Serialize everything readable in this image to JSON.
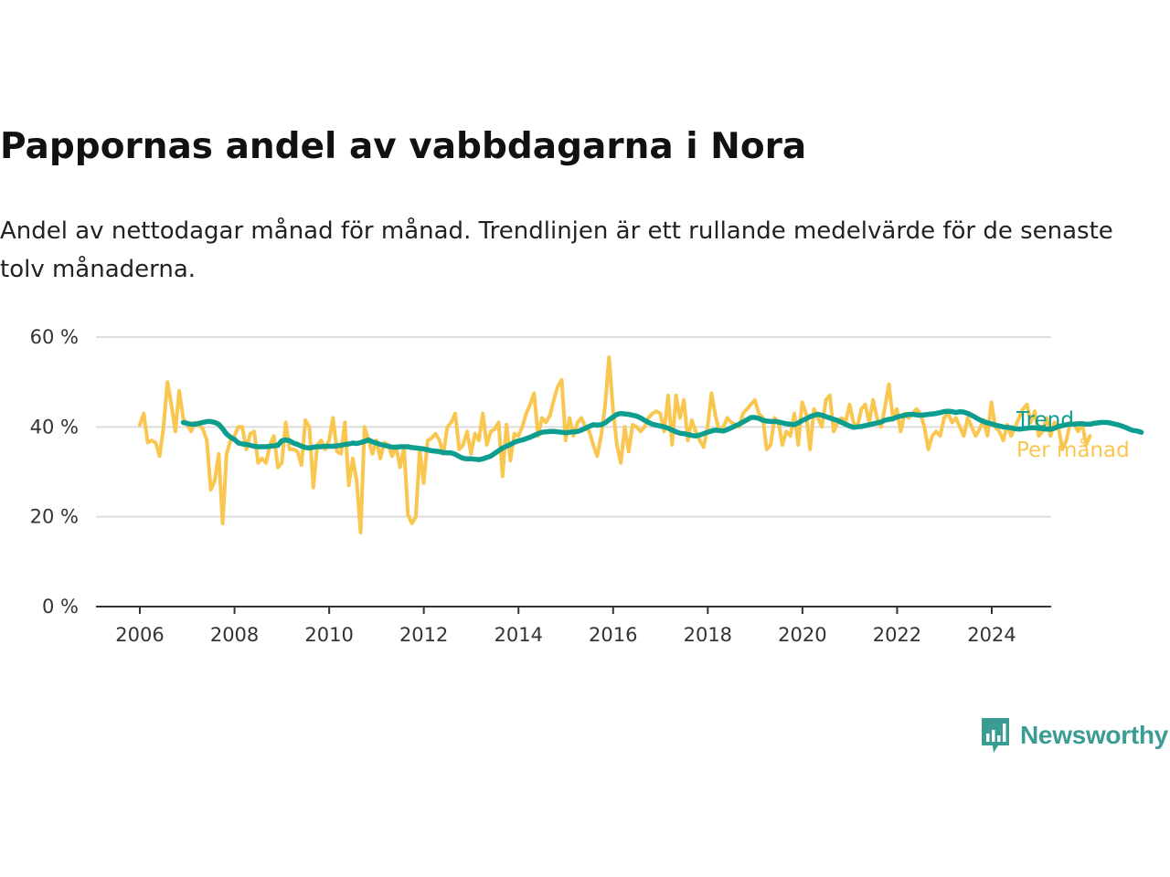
{
  "colors": {
    "trend": "#0d9e8f",
    "monthly": "#f9c74f",
    "grid": "#dddddd",
    "axis": "#333333",
    "brand": "#3a9c93"
  },
  "brand": {
    "name": "Newsworthy",
    "icon": "bar-chart-speech-bubble-icon"
  },
  "chart_data": {
    "type": "line",
    "title": "Pappornas andel av vabbdagarna i Nora",
    "subtitle": "Andel av nettodagar månad för månad. Trendlinjen är ett rullande medelvärde för de senaste tolv månaderna.",
    "xlabel": "",
    "ylabel": "",
    "xlim": [
      2005.5,
      2025.25
    ],
    "ylim": [
      0,
      60
    ],
    "x_ticks": [
      2006,
      2008,
      2010,
      2012,
      2014,
      2016,
      2018,
      2020,
      2022,
      2024
    ],
    "y_ticks": [
      {
        "value": 0,
        "label": "0 %"
      },
      {
        "value": 20,
        "label": "20 %"
      },
      {
        "value": 40,
        "label": "40 %"
      },
      {
        "value": 60,
        "label": "60 %"
      }
    ],
    "grid": true,
    "legend": "right, labels at line ends",
    "series": [
      {
        "name": "Per månad",
        "key": "monthly",
        "x_start": 2006.0,
        "x_step": 0.0833,
        "values": [
          40.5,
          43,
          36.5,
          37,
          36.5,
          33.5,
          40,
          50,
          45,
          39,
          48,
          42,
          40.5,
          39,
          41,
          40.5,
          39.5,
          37,
          26,
          28,
          34,
          18.5,
          34,
          37,
          38,
          40,
          40,
          35,
          38.5,
          39,
          32,
          33,
          32,
          36,
          38,
          31,
          32,
          41,
          35,
          35,
          34.5,
          31.5,
          41.5,
          40,
          26.5,
          36,
          37,
          35,
          37,
          42,
          34.5,
          34,
          41,
          27,
          33,
          28,
          16.5,
          40,
          37,
          34,
          37,
          33,
          36.5,
          36,
          33.5,
          35.5,
          31,
          35.5,
          20.5,
          18.5,
          20,
          35,
          27.5,
          37,
          37.5,
          38.5,
          37,
          34,
          40,
          41,
          43,
          35,
          36,
          39,
          34,
          38.5,
          37,
          43,
          36,
          39,
          39.5,
          41,
          29,
          40.5,
          32.5,
          38.5,
          38,
          40,
          43,
          45,
          47.5,
          38,
          42,
          41,
          42.5,
          46,
          49,
          50.5,
          37,
          42,
          38,
          41,
          42,
          40,
          39,
          36,
          33.5,
          38,
          44.5,
          55.5,
          44,
          36,
          32,
          40,
          34.5,
          40.5,
          40,
          39,
          40,
          42,
          43,
          43.5,
          43,
          39,
          47,
          36,
          47,
          42,
          46,
          37,
          41.5,
          39,
          37,
          35.5,
          40,
          47.5,
          42.5,
          39,
          40,
          42,
          41,
          40.5,
          40,
          43,
          44,
          45,
          46,
          43,
          42,
          35,
          36,
          42,
          41,
          36,
          39,
          38,
          43,
          36,
          45.5,
          43,
          35,
          44,
          42,
          40,
          46,
          47,
          39,
          41,
          42,
          41,
          45,
          41,
          40,
          44,
          45,
          41,
          46,
          42,
          40,
          44.5,
          49.5,
          42,
          44,
          39,
          43,
          42,
          43,
          44,
          43,
          40,
          35,
          38,
          39,
          38,
          42,
          43,
          41,
          42,
          40,
          38,
          42,
          40,
          38,
          39.5,
          41.5,
          38,
          45.5,
          40,
          39,
          37,
          40.5,
          38,
          40,
          42,
          44,
          45,
          41,
          43.5,
          38,
          39,
          42,
          38,
          41,
          40,
          35,
          37,
          41,
          40.5,
          39,
          41,
          36,
          38
        ]
      },
      {
        "name": "Trend",
        "key": "trend",
        "x_start": 2006.917,
        "x_step": 0.0833,
        "values": [
          41,
          40.8,
          40.6,
          40.6,
          40.8,
          41,
          41.2,
          41.2,
          41,
          40.6,
          39.6,
          38.4,
          37.7,
          37.2,
          36.4,
          36.2,
          36.1,
          35.9,
          35.7,
          35.6,
          35.6,
          35.6,
          35.7,
          35.8,
          35.9,
          36.9,
          37.1,
          36.9,
          36.4,
          36.1,
          35.7,
          35.4,
          35.3,
          35.5,
          35.6,
          35.6,
          35.7,
          35.7,
          35.7,
          35.8,
          35.9,
          36.1,
          36.2,
          36.4,
          36.3,
          36.5,
          36.8,
          37.1,
          36.7,
          36.4,
          36.1,
          35.9,
          35.7,
          35.5,
          35.5,
          35.6,
          35.6,
          35.6,
          35.4,
          35.3,
          35.2,
          35.1,
          34.9,
          34.7,
          34.6,
          34.5,
          34.3,
          34.2,
          34.2,
          33.9,
          33.4,
          33,
          32.9,
          32.9,
          32.8,
          32.7,
          32.9,
          33.2,
          33.5,
          34.1,
          34.7,
          35.3,
          35.7,
          36.1,
          36.6,
          36.9,
          37.1,
          37.4,
          37.7,
          38.1,
          38.5,
          38.8,
          38.9,
          39,
          39,
          38.9,
          38.8,
          38.7,
          38.8,
          38.9,
          39,
          39.3,
          39.7,
          40.1,
          40.5,
          40.4,
          40.5,
          40.9,
          41.6,
          42.2,
          42.8,
          43,
          42.9,
          42.8,
          42.6,
          42.4,
          42,
          41.5,
          41,
          40.6,
          40.4,
          40.2,
          40,
          39.7,
          39.3,
          38.9,
          38.6,
          38.5,
          38.3,
          38.1,
          38,
          38.2,
          38.5,
          38.8,
          39.1,
          39.3,
          39.2,
          39.1,
          39.4,
          39.8,
          40.2,
          40.6,
          41.1,
          41.6,
          42.1,
          42.1,
          41.9,
          41.5,
          41.3,
          41.2,
          41.2,
          41.1,
          40.9,
          40.7,
          40.6,
          40.5,
          40.9,
          41.4,
          41.8,
          42.3,
          42.6,
          42.8,
          42.6,
          42.3,
          42,
          41.7,
          41.4,
          41,
          40.6,
          40.2,
          39.9,
          40,
          40.1,
          40.3,
          40.5,
          40.7,
          40.9,
          41.1,
          41.5,
          41.7,
          41.8,
          42.2,
          42.4,
          42.6,
          42.8,
          42.8,
          42.7,
          42.6,
          42.7,
          42.8,
          42.9,
          43,
          43.2,
          43.4,
          43.5,
          43.4,
          43.2,
          43.4,
          43.3,
          43,
          42.6,
          42.1,
          41.6,
          41.2,
          40.9,
          40.7,
          40.4,
          40.2,
          40,
          39.9,
          39.8,
          39.6,
          39.5,
          39.6,
          39.7,
          39.8,
          39.8,
          39.7,
          39.6,
          39.5,
          39.5,
          39.7,
          40.1,
          40.3,
          40.5,
          40.6,
          40.6,
          40.7,
          40.7,
          40.6,
          40.6,
          40.8,
          40.9,
          41,
          41,
          40.9,
          40.7,
          40.5,
          40.2,
          39.9,
          39.5,
          39.2,
          39.1,
          38.8
        ]
      }
    ]
  }
}
